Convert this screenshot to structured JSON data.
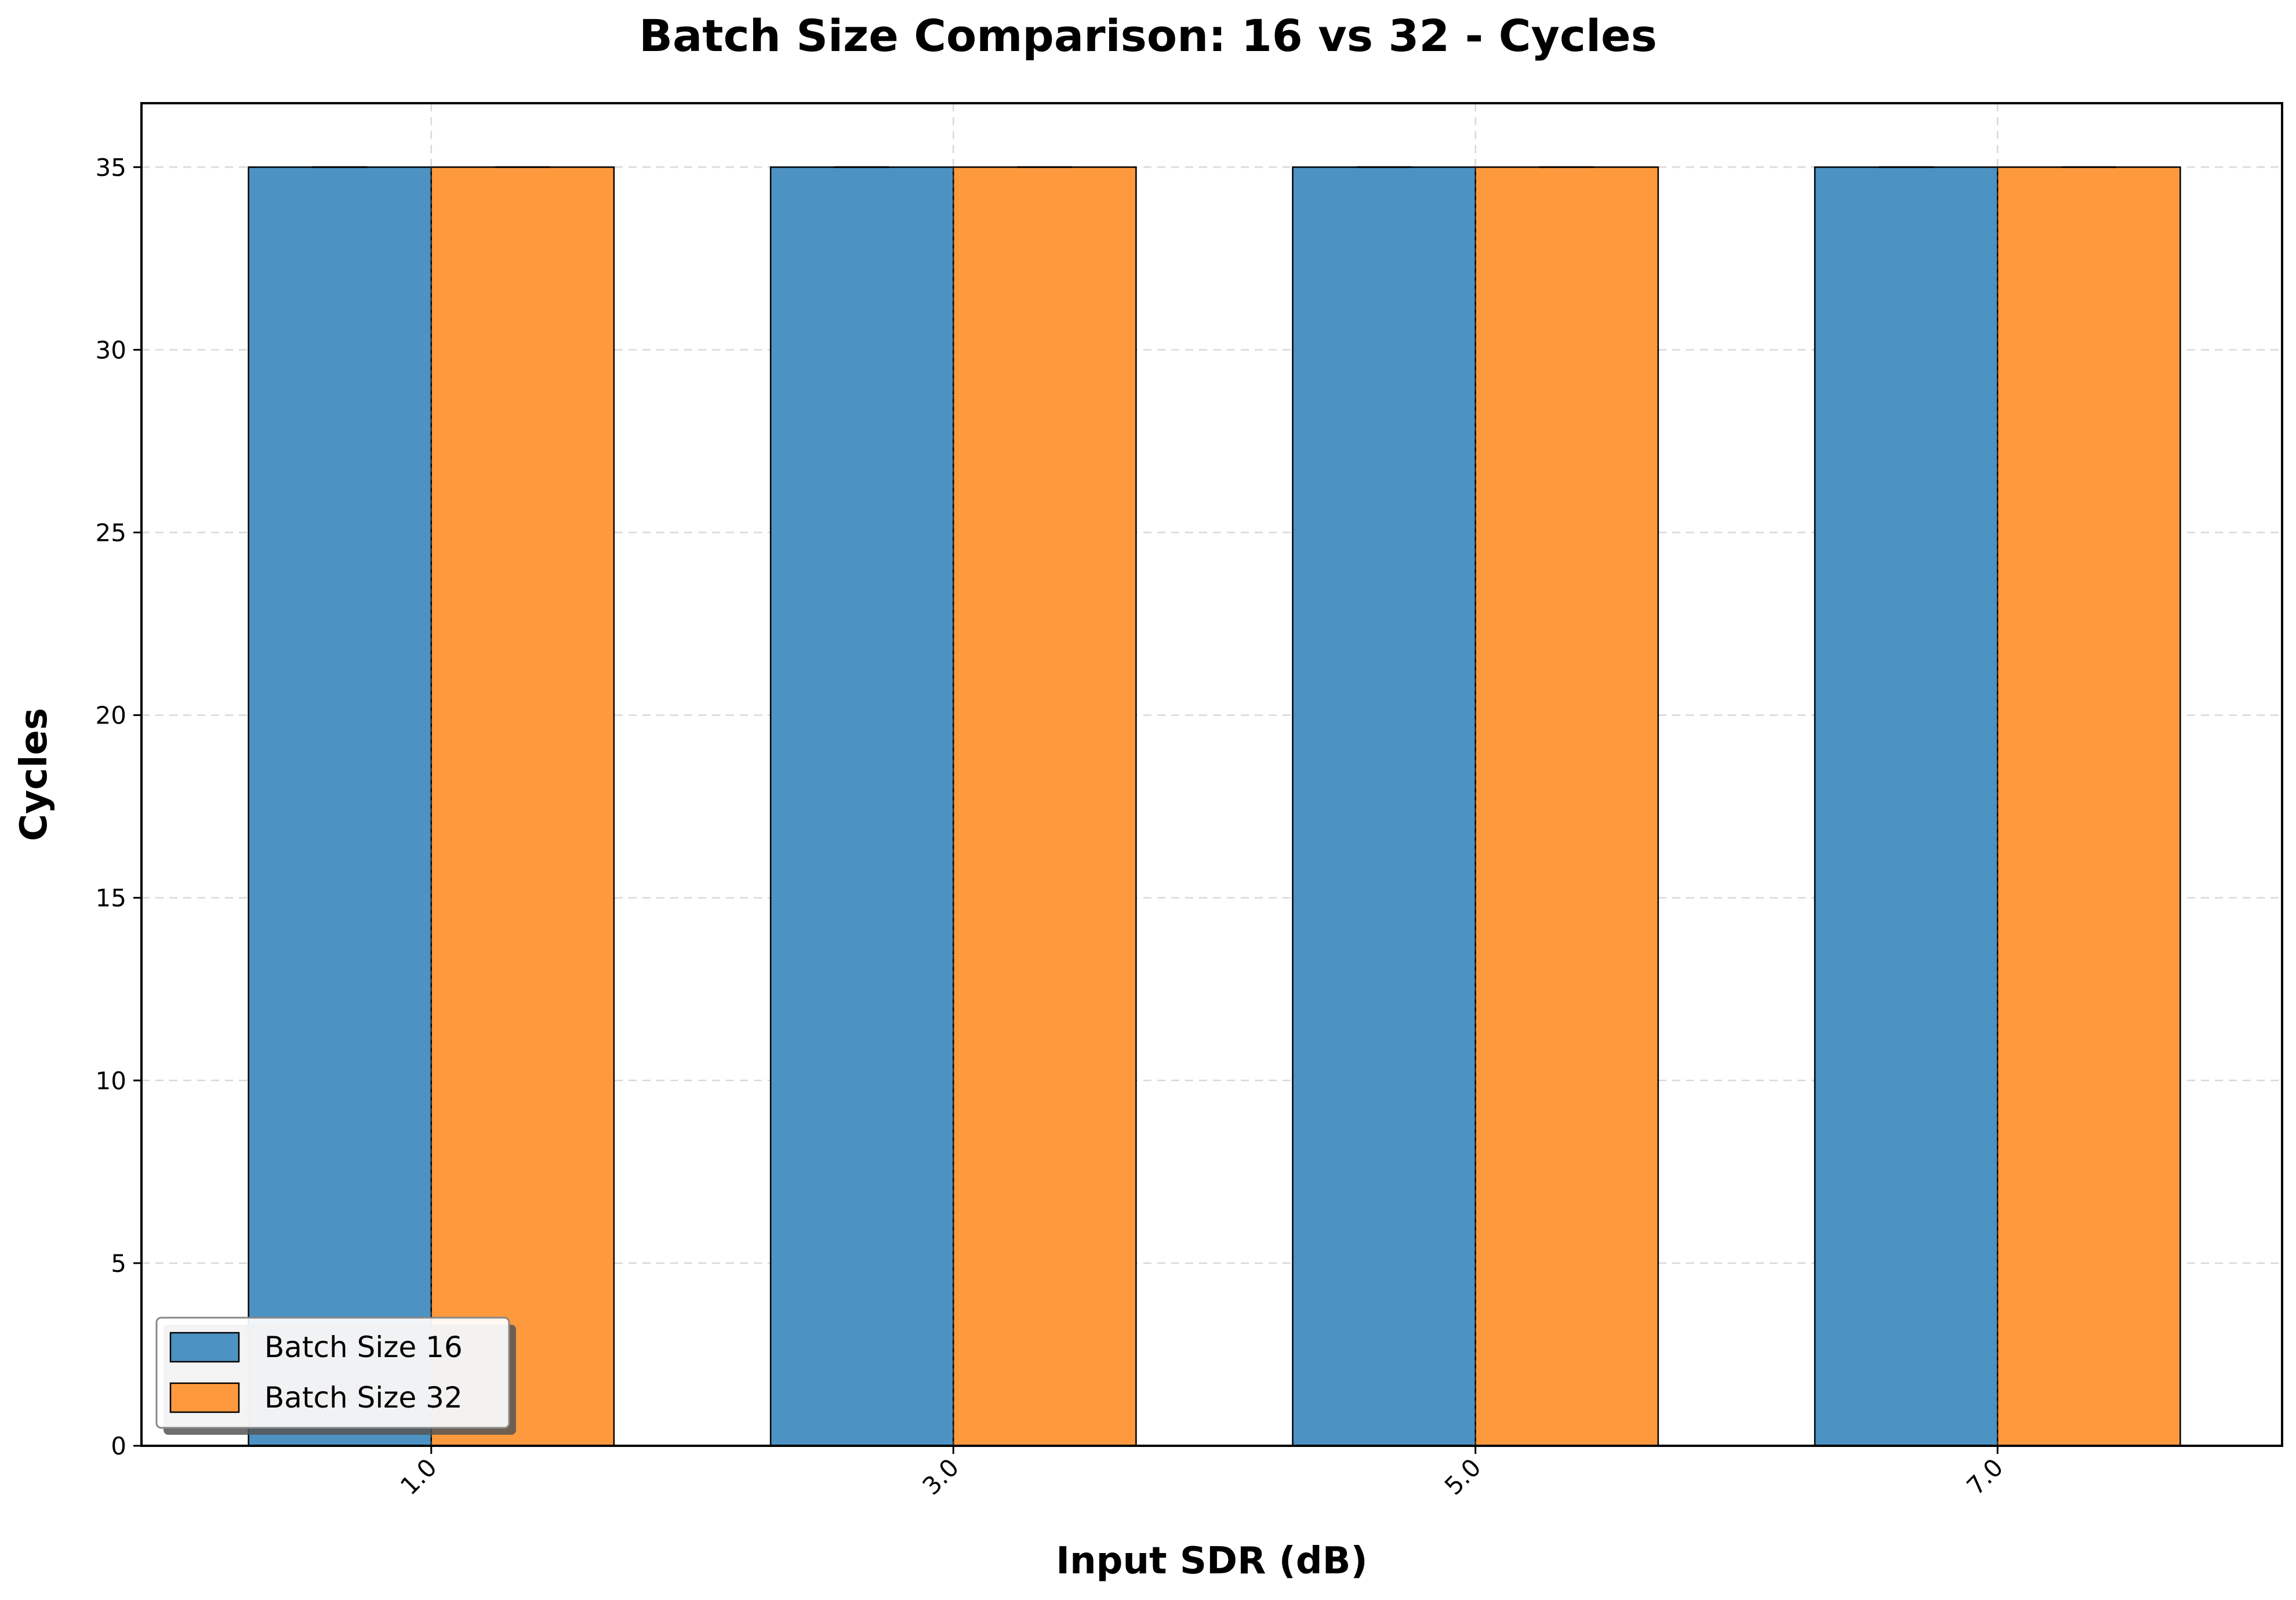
{
  "chart_data": {
    "type": "bar",
    "title": "Batch Size Comparison: 16 vs 32 - Cycles",
    "xlabel": "Input SDR (dB)",
    "ylabel": "Cycles",
    "categories": [
      "1.0",
      "3.0",
      "5.0",
      "7.0"
    ],
    "series": [
      {
        "name": "Batch Size 16",
        "values": [
          35,
          35,
          35,
          35
        ],
        "color": "#4c92c3"
      },
      {
        "name": "Batch Size 32",
        "values": [
          35,
          35,
          35,
          35
        ],
        "color": "#ff993e"
      }
    ],
    "ylim": [
      0,
      36.75
    ],
    "yticks": [
      0,
      5,
      10,
      15,
      20,
      25,
      30,
      35
    ],
    "grid": true,
    "legend_position": "lower-left"
  }
}
